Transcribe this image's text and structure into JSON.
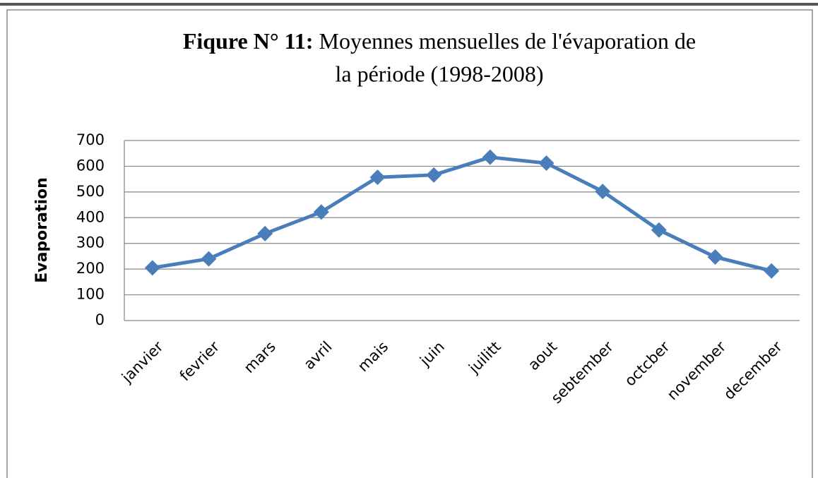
{
  "chart_data": {
    "type": "line",
    "title": [
      "Fiqure N° 11:",
      "Moyennes mensuelles de l'évaporation de",
      "la période (1998-2008)"
    ],
    "y_label": "Evaporation",
    "categories": [
      "janvier",
      "fevrier",
      "mars",
      "avril",
      "mais",
      "juin",
      "juilitt",
      "aout",
      "sebtember",
      "octcber",
      "november",
      "december"
    ],
    "series": [
      {
        "name": "Evaporation",
        "color": "#4a7ebb",
        "values": [
          205,
          240,
          338,
          422,
          557,
          566,
          635,
          612,
          502,
          352,
          247,
          193
        ]
      }
    ],
    "ylim": [
      0,
      700
    ],
    "yticks": [
      0,
      100,
      200,
      300,
      400,
      500,
      600,
      700
    ],
    "grid": true
  }
}
